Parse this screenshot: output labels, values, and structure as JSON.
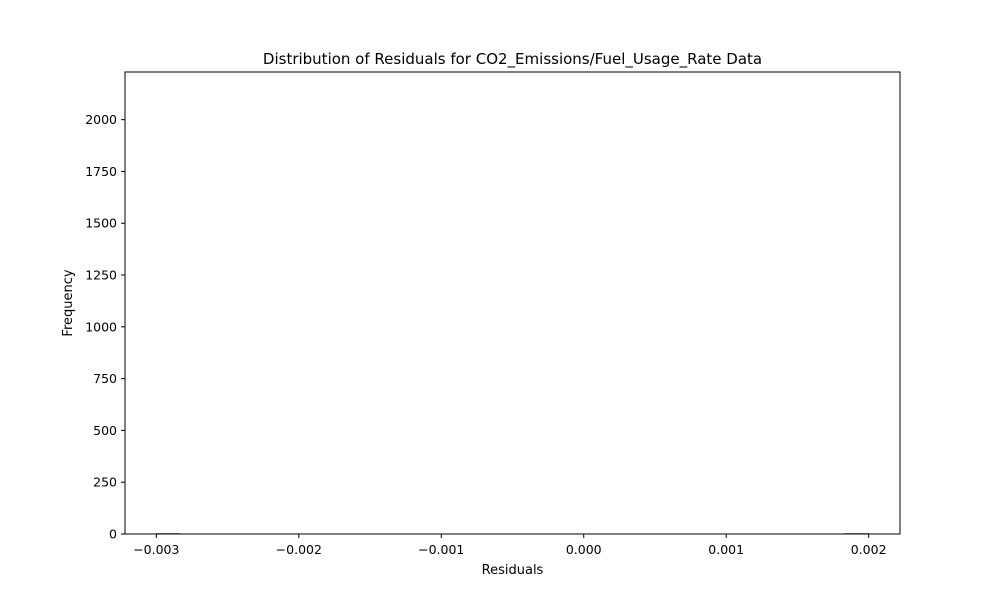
{
  "chart_data": {
    "type": "bar",
    "title": "Distribution of Residuals for CO2_Emissions/Fuel_Usage_Rate Data",
    "xlabel": "Residuals",
    "ylabel": "Frequency",
    "xlim": [
      -0.00322,
      0.00222
    ],
    "ylim": [
      0,
      2230
    ],
    "bin_edges": [
      -0.003,
      -0.002833,
      -0.002667,
      -0.0025,
      -0.002333,
      -0.002167,
      -0.002,
      -0.001833,
      -0.001667,
      -0.0015,
      -0.001333,
      -0.001167,
      -0.001,
      -0.000833,
      -0.000667,
      -0.0005,
      -0.000333,
      -0.000167,
      0.0,
      0.000167,
      0.000333,
      0.0005,
      0.000667,
      0.000833,
      0.001,
      0.001167,
      0.001333,
      0.0015,
      0.001667,
      0.001833,
      0.002
    ],
    "values": [
      1,
      0,
      0,
      0,
      0,
      0,
      0,
      0,
      0,
      0,
      0,
      0,
      0,
      0,
      0,
      0,
      0,
      0,
      0,
      0,
      0,
      0,
      0,
      0,
      0,
      0,
      0,
      0,
      0,
      1
    ],
    "bar_color": "#87ceeb",
    "edge_color": "#000000",
    "x_ticks": [
      {
        "value": -0.003,
        "label": "−0.003"
      },
      {
        "value": -0.002,
        "label": "−0.002"
      },
      {
        "value": -0.001,
        "label": "−0.001"
      },
      {
        "value": 0.0,
        "label": "0.000"
      },
      {
        "value": 0.001,
        "label": "0.001"
      },
      {
        "value": 0.002,
        "label": "0.002"
      }
    ],
    "y_ticks": [
      {
        "value": 0,
        "label": "0"
      },
      {
        "value": 250,
        "label": "250"
      },
      {
        "value": 500,
        "label": "500"
      },
      {
        "value": 750,
        "label": "750"
      },
      {
        "value": 1000,
        "label": "1000"
      },
      {
        "value": 1250,
        "label": "1250"
      },
      {
        "value": 1500,
        "label": "1500"
      },
      {
        "value": 1750,
        "label": "1750"
      },
      {
        "value": 2000,
        "label": "2000"
      }
    ],
    "grid": false,
    "legend": "none"
  }
}
